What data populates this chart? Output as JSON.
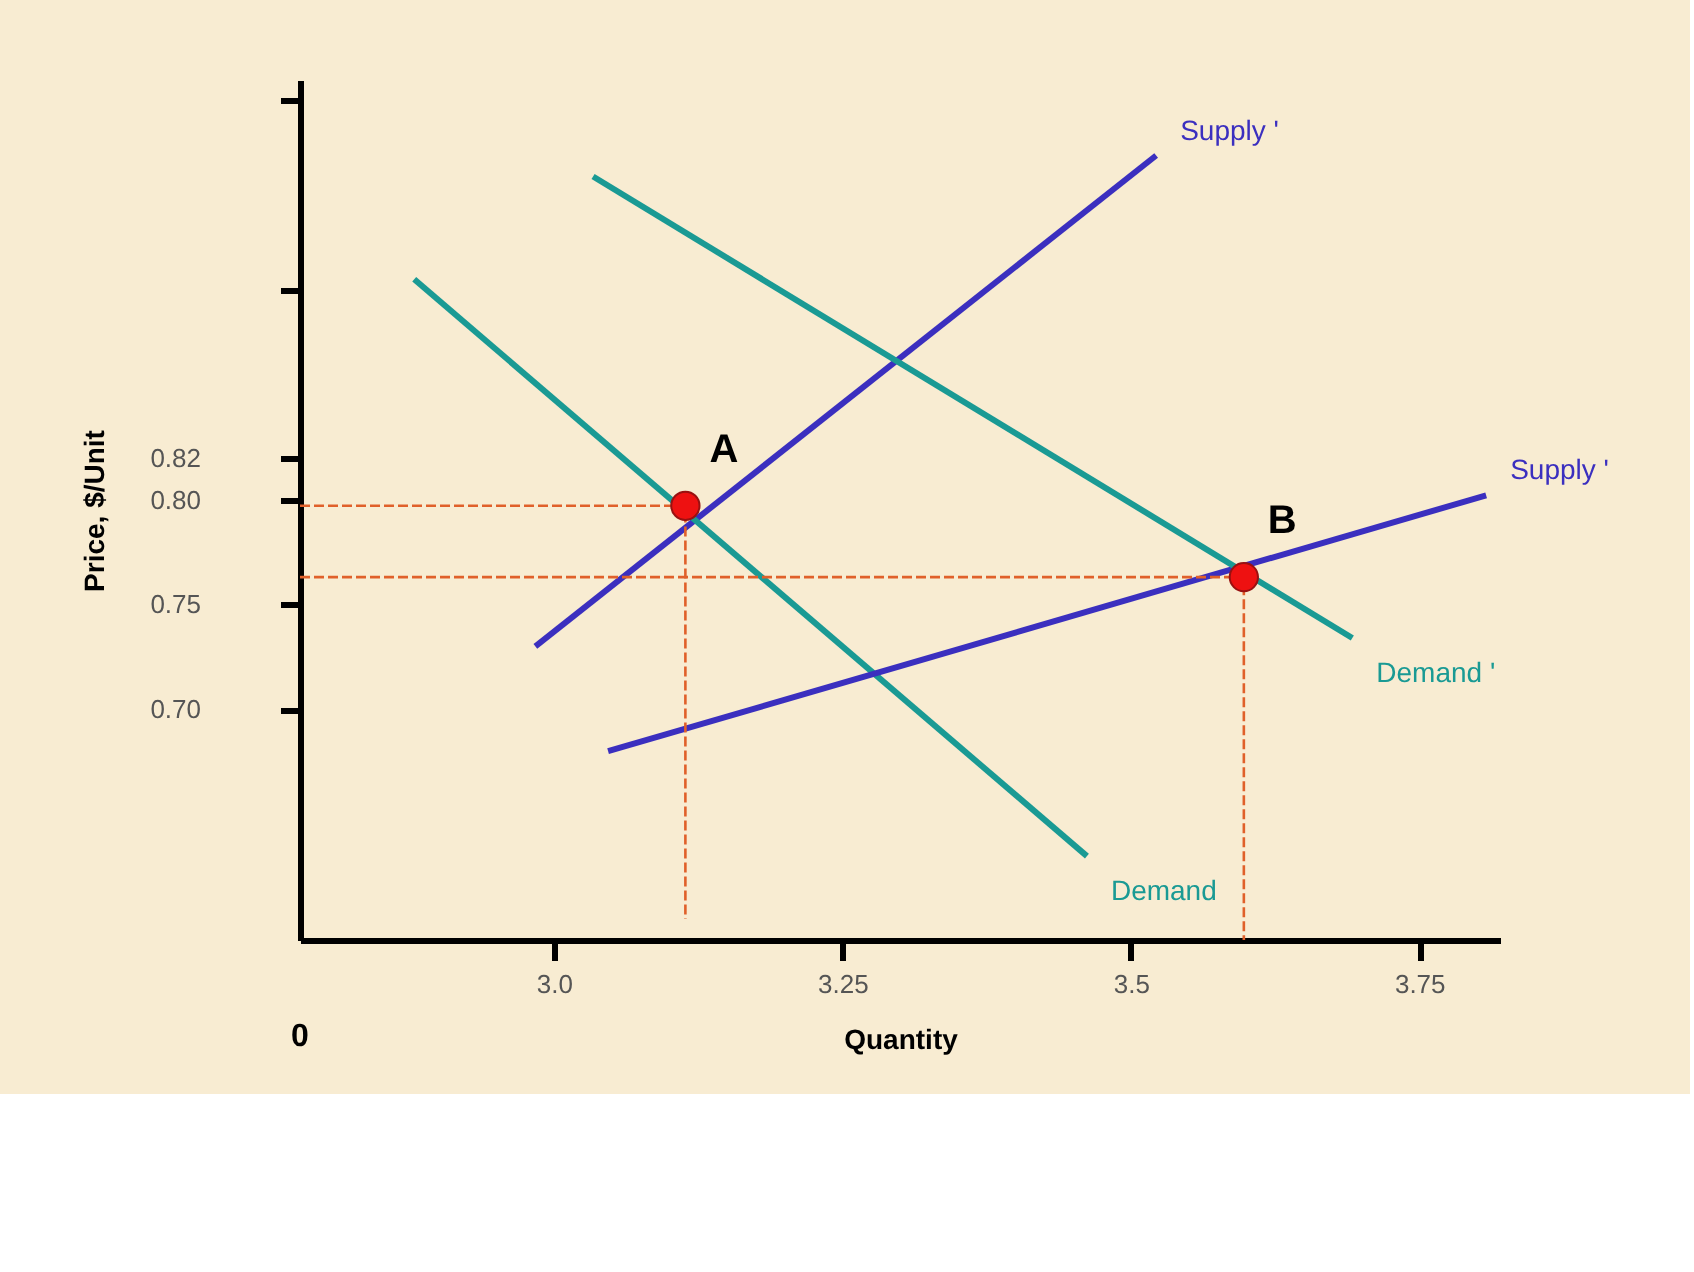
{
  "chart_data": {
    "type": "line",
    "xlabel": "Quantity",
    "ylabel": "Price, $/Unit",
    "xlim": [
      2.78,
      3.82
    ],
    "ylim": [
      0.59,
      1.0
    ],
    "xticks": [
      {
        "value": 3,
        "label": "3.0"
      },
      3.25,
      3.5,
      3.75
    ],
    "yticks": [
      {
        "value": 0.7,
        "label": "0.70"
      },
      0.75,
      {
        "value": 0.8,
        "label": "0.80"
      },
      0.82,
      {
        "value": 0.9,
        "label": null
      },
      {
        "value": 0.99,
        "label": null
      }
    ],
    "grid": false,
    "marker": "none",
    "line_style": "solid",
    "series": [
      {
        "name": "Supply '",
        "color": "#3b2fbf",
        "x": [
          2.984,
          3.522
        ],
        "values": [
          0.73,
          0.964
        ]
      },
      {
        "name": "Demand",
        "color": "#1a9a94",
        "x": [
          2.879,
          3.462
        ],
        "values": [
          0.905,
          0.63
        ]
      },
      {
        "name": "Supply '",
        "color": "#3b2fbf",
        "x": [
          3.047,
          3.808
        ],
        "values": [
          0.68,
          0.802
        ]
      },
      {
        "name": "Demand '",
        "color": "#1a9a94",
        "x": [
          3.034,
          3.692
        ],
        "values": [
          0.954,
          0.734
        ]
      },
      {
        "color": "#e0602a",
        "line_style": "dashed",
        "x": [
          2.78,
          3.114,
          3.114
        ],
        "values": [
          0.797,
          0.797,
          0.6
        ]
      },
      {
        "color": "#e0602a",
        "line_style": "dashed",
        "x": [
          2.78,
          3.598,
          3.598
        ],
        "values": [
          0.763,
          0.763,
          0.59
        ]
      },
      {
        "type": "scatter",
        "color": "#ee1111",
        "marker": "circle",
        "x": [
          3.114,
          3.598
        ],
        "values": [
          0.797,
          0.763
        ]
      }
    ],
    "annotations": [
      {
        "text": "A",
        "x": 3.114,
        "y": 0.797
      },
      {
        "text": "B",
        "x": 3.598,
        "y": 0.763
      },
      "0"
    ]
  }
}
